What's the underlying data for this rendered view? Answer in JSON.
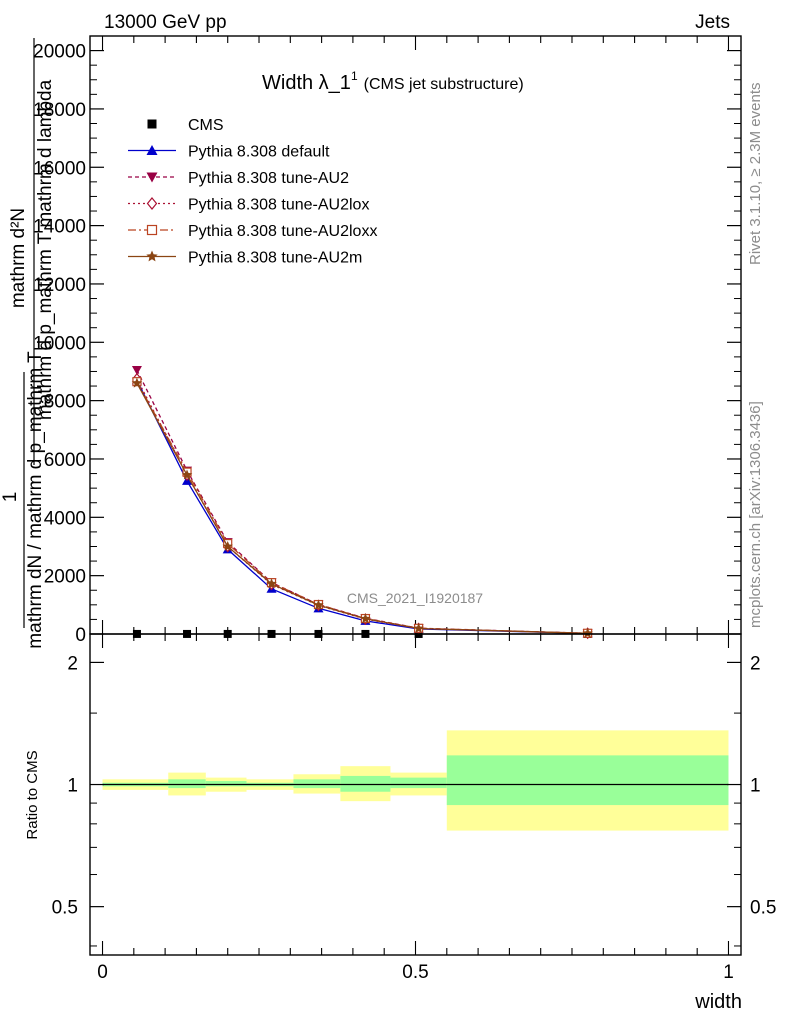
{
  "header": {
    "left": "13000 GeV pp",
    "right": "Jets"
  },
  "side_labels": {
    "rivet": "Rivet 3.1.10, ≥ 2.3M events",
    "mcplots": "mcplots.cern.ch [arXiv:1306.3436]"
  },
  "watermark": "CMS_2021_I1920187",
  "chart_data": [
    {
      "type": "line",
      "title": "Width λ_1",
      "title_sup": "1",
      "subtitle": "(CMS jet substructure)",
      "ylabel_numerator": "mathrm d²N",
      "ylabel_denominator": "mathrm d p_mathrm T mathrm d lambda",
      "ylabel_prefix_numerator": "1",
      "ylabel_prefix_denominator": "mathrm dN / mathrm d p_mathrm T",
      "ylim": [
        0,
        20500
      ],
      "yticks": [
        0,
        2000,
        4000,
        6000,
        8000,
        10000,
        12000,
        14000,
        16000,
        18000,
        20000
      ],
      "ytick_labels": [
        "0",
        "2000",
        "4000",
        "6000",
        "8000",
        "10000",
        "12000",
        "14000",
        "16000",
        "18000",
        "20000"
      ],
      "xlim": [
        -0.02,
        1.02
      ],
      "grid": false,
      "legend_position": "top-left",
      "x": [
        0.055,
        0.135,
        0.2,
        0.27,
        0.345,
        0.42,
        0.505,
        0.775
      ],
      "series": [
        {
          "name": "CMS",
          "color": "#000000",
          "marker": "square",
          "dash": "none",
          "values": [
            2,
            2,
            2,
            2,
            2,
            2,
            1,
            1
          ]
        },
        {
          "name": "Pythia 8.308 default",
          "color": "#0000cc",
          "marker": "triangle-up",
          "dash": "solid",
          "values": [
            8700,
            5250,
            2900,
            1550,
            880,
            450,
            170,
            20
          ]
        },
        {
          "name": "Pythia 8.308 tune-AU2",
          "color": "#990044",
          "marker": "triangle-down",
          "dash": "4,3",
          "values": [
            9050,
            5600,
            3150,
            1770,
            1010,
            540,
            200,
            25
          ]
        },
        {
          "name": "Pythia 8.308 tune-AU2lox",
          "color": "#aa1133",
          "marker": "diamond",
          "dash": "2,3",
          "values": [
            8750,
            5450,
            3000,
            1700,
            980,
            510,
            190,
            25
          ]
        },
        {
          "name": "Pythia 8.308 tune-AU2loxx",
          "color": "#bb4422",
          "marker": "square-open",
          "dash": "8,3,2,3",
          "values": [
            8650,
            5550,
            3100,
            1760,
            1010,
            530,
            195,
            25
          ]
        },
        {
          "name": "Pythia 8.308 tune-AU2m",
          "color": "#8b4513",
          "marker": "star",
          "dash": "solid",
          "values": [
            8600,
            5450,
            3000,
            1720,
            990,
            520,
            190,
            25
          ]
        }
      ]
    },
    {
      "type": "area",
      "ylabel": "Ratio to CMS",
      "xlabel": "width",
      "ylim": [
        0.38,
        2.35
      ],
      "ylog": true,
      "yticks": [
        0.5,
        1,
        2
      ],
      "ytick_labels": [
        "0.5",
        "1",
        "2"
      ],
      "xticks": [
        0,
        0.5,
        1
      ],
      "xtick_labels": [
        "0",
        "0.5",
        "1"
      ],
      "xlim": [
        -0.02,
        1.02
      ],
      "reference": 1,
      "band_colors": {
        "inner": "#99ff99",
        "outer": "#ffff99"
      },
      "bins": [
        {
          "x0": 0.0,
          "x1": 0.105,
          "inner": [
            0.99,
            1.01
          ],
          "outer": [
            0.97,
            1.03
          ]
        },
        {
          "x0": 0.105,
          "x1": 0.165,
          "inner": [
            0.98,
            1.03
          ],
          "outer": [
            0.94,
            1.07
          ]
        },
        {
          "x0": 0.165,
          "x1": 0.23,
          "inner": [
            0.99,
            1.02
          ],
          "outer": [
            0.96,
            1.04
          ]
        },
        {
          "x0": 0.23,
          "x1": 0.305,
          "inner": [
            0.99,
            1.01
          ],
          "outer": [
            0.97,
            1.03
          ]
        },
        {
          "x0": 0.305,
          "x1": 0.38,
          "inner": [
            0.98,
            1.03
          ],
          "outer": [
            0.95,
            1.06
          ]
        },
        {
          "x0": 0.38,
          "x1": 0.46,
          "inner": [
            0.96,
            1.05
          ],
          "outer": [
            0.91,
            1.11
          ]
        },
        {
          "x0": 0.46,
          "x1": 0.55,
          "inner": [
            0.98,
            1.04
          ],
          "outer": [
            0.94,
            1.07
          ]
        },
        {
          "x0": 0.55,
          "x1": 1.0,
          "inner": [
            0.89,
            1.18
          ],
          "outer": [
            0.77,
            1.36
          ]
        }
      ]
    }
  ]
}
